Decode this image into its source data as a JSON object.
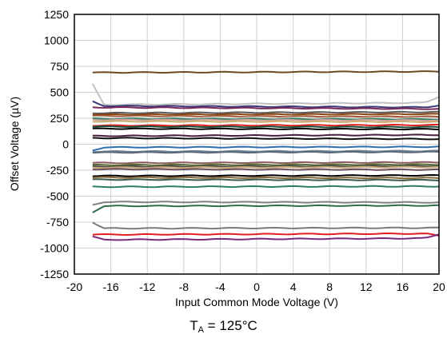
{
  "chart_data": {
    "type": "line",
    "title": "",
    "xlabel": "Input Common Mode Voltage (V)",
    "ylabel": "Offset Voltage (µV)",
    "xlim": [
      -20,
      20
    ],
    "ylim": [
      -1250,
      1250
    ],
    "x_ticks": [
      "-20",
      "-16",
      "-12",
      "-8",
      "-4",
      "0",
      "4",
      "8",
      "12",
      "16",
      "20"
    ],
    "y_ticks": [
      "1250",
      "1000",
      "750",
      "500",
      "250",
      "0",
      "-250",
      "-500",
      "-750",
      "-1000",
      "-1250"
    ],
    "grid": true,
    "legend": "none",
    "x_range_of_traces": [
      -18,
      20
    ],
    "series": [
      {
        "color": "#6b4a22",
        "left": 690,
        "right": 700,
        "curl_left": 0,
        "curl_right": 0
      },
      {
        "color": "#c0c0c0",
        "left": 380,
        "right": 400,
        "curl_left": 200,
        "curl_right": 60
      },
      {
        "color": "#3c3a7a",
        "left": 370,
        "right": 355,
        "curl_left": 40,
        "curl_right": 20
      },
      {
        "color": "#7a2a5a",
        "left": 355,
        "right": 340,
        "curl_left": 0,
        "curl_right": 0
      },
      {
        "color": "#5a5a5a",
        "left": 300,
        "right": 310,
        "curl_left": 0,
        "curl_right": 0
      },
      {
        "color": "#8b4513",
        "left": 285,
        "right": 290,
        "curl_left": 0,
        "curl_right": 0
      },
      {
        "color": "#a0522d",
        "left": 270,
        "right": 265,
        "curl_left": 0,
        "curl_right": 0
      },
      {
        "color": "#d8d8d8",
        "left": 260,
        "right": 250,
        "curl_left": 0,
        "curl_right": 0
      },
      {
        "color": "#2e7d5b",
        "left": 245,
        "right": 240,
        "curl_left": 0,
        "curl_right": 0
      },
      {
        "color": "#d4a0a0",
        "left": 235,
        "right": 230,
        "curl_left": 0,
        "curl_right": 0
      },
      {
        "color": "#c8b070",
        "left": 220,
        "right": 215,
        "curl_left": 0,
        "curl_right": 0
      },
      {
        "color": "#e02020",
        "left": 180,
        "right": 185,
        "curl_left": 0,
        "curl_right": 0
      },
      {
        "color": "#1f4f3a",
        "left": 170,
        "right": 165,
        "curl_left": 0,
        "curl_right": 0
      },
      {
        "color": "#000000",
        "left": 150,
        "right": 145,
        "curl_left": 0,
        "curl_right": 0
      },
      {
        "color": "#4b1f3f",
        "left": 80,
        "right": 90,
        "curl_left": 0,
        "curl_right": 0
      },
      {
        "color": "#111111",
        "left": 60,
        "right": 50,
        "curl_left": 0,
        "curl_right": 0
      },
      {
        "color": "#2f6fb0",
        "left": -30,
        "right": -25,
        "curl_left": -30,
        "curl_right": 0
      },
      {
        "color": "#708090",
        "left": -70,
        "right": -65,
        "curl_left": 0,
        "curl_right": 0
      },
      {
        "color": "#5a6a7a",
        "left": -80,
        "right": -75,
        "curl_left": 0,
        "curl_right": 0
      },
      {
        "color": "#8b5a5a",
        "left": -180,
        "right": -175,
        "curl_left": 0,
        "curl_right": 0
      },
      {
        "color": "#556b2f",
        "left": -200,
        "right": -195,
        "curl_left": 0,
        "curl_right": 0
      },
      {
        "color": "#4a4a4a",
        "left": -215,
        "right": -210,
        "curl_left": 0,
        "curl_right": 0
      },
      {
        "color": "#c8a878",
        "left": -225,
        "right": -220,
        "curl_left": 0,
        "curl_right": 0
      },
      {
        "color": "#6a4a5a",
        "left": -240,
        "right": -245,
        "curl_left": 0,
        "curl_right": 0
      },
      {
        "color": "#000000",
        "left": -305,
        "right": -300,
        "curl_left": 0,
        "curl_right": 0
      },
      {
        "color": "#8b6b3a",
        "left": -320,
        "right": -325,
        "curl_left": 0,
        "curl_right": 0
      },
      {
        "color": "#3a5a4a",
        "left": -340,
        "right": -345,
        "curl_left": 0,
        "curl_right": 0
      },
      {
        "color": "#2e7d5b",
        "left": -410,
        "right": -405,
        "curl_left": 0,
        "curl_right": 0
      },
      {
        "color": "#808080",
        "left": -555,
        "right": -560,
        "curl_left": -30,
        "curl_right": 0
      },
      {
        "color": "#2e6b4a",
        "left": -595,
        "right": -590,
        "curl_left": -60,
        "curl_right": 0
      },
      {
        "color": "#7a7a7a",
        "left": -810,
        "right": -805,
        "curl_left": 60,
        "curl_right": 0
      },
      {
        "color": "#e02020",
        "left": -870,
        "right": -860,
        "curl_left": 0,
        "curl_right": -20
      },
      {
        "color": "#7a2a7a",
        "left": -920,
        "right": -905,
        "curl_left": 30,
        "curl_right": 40
      }
    ],
    "caption": "T",
    "caption_sub": "A",
    "caption_rest": " = 125°C"
  }
}
